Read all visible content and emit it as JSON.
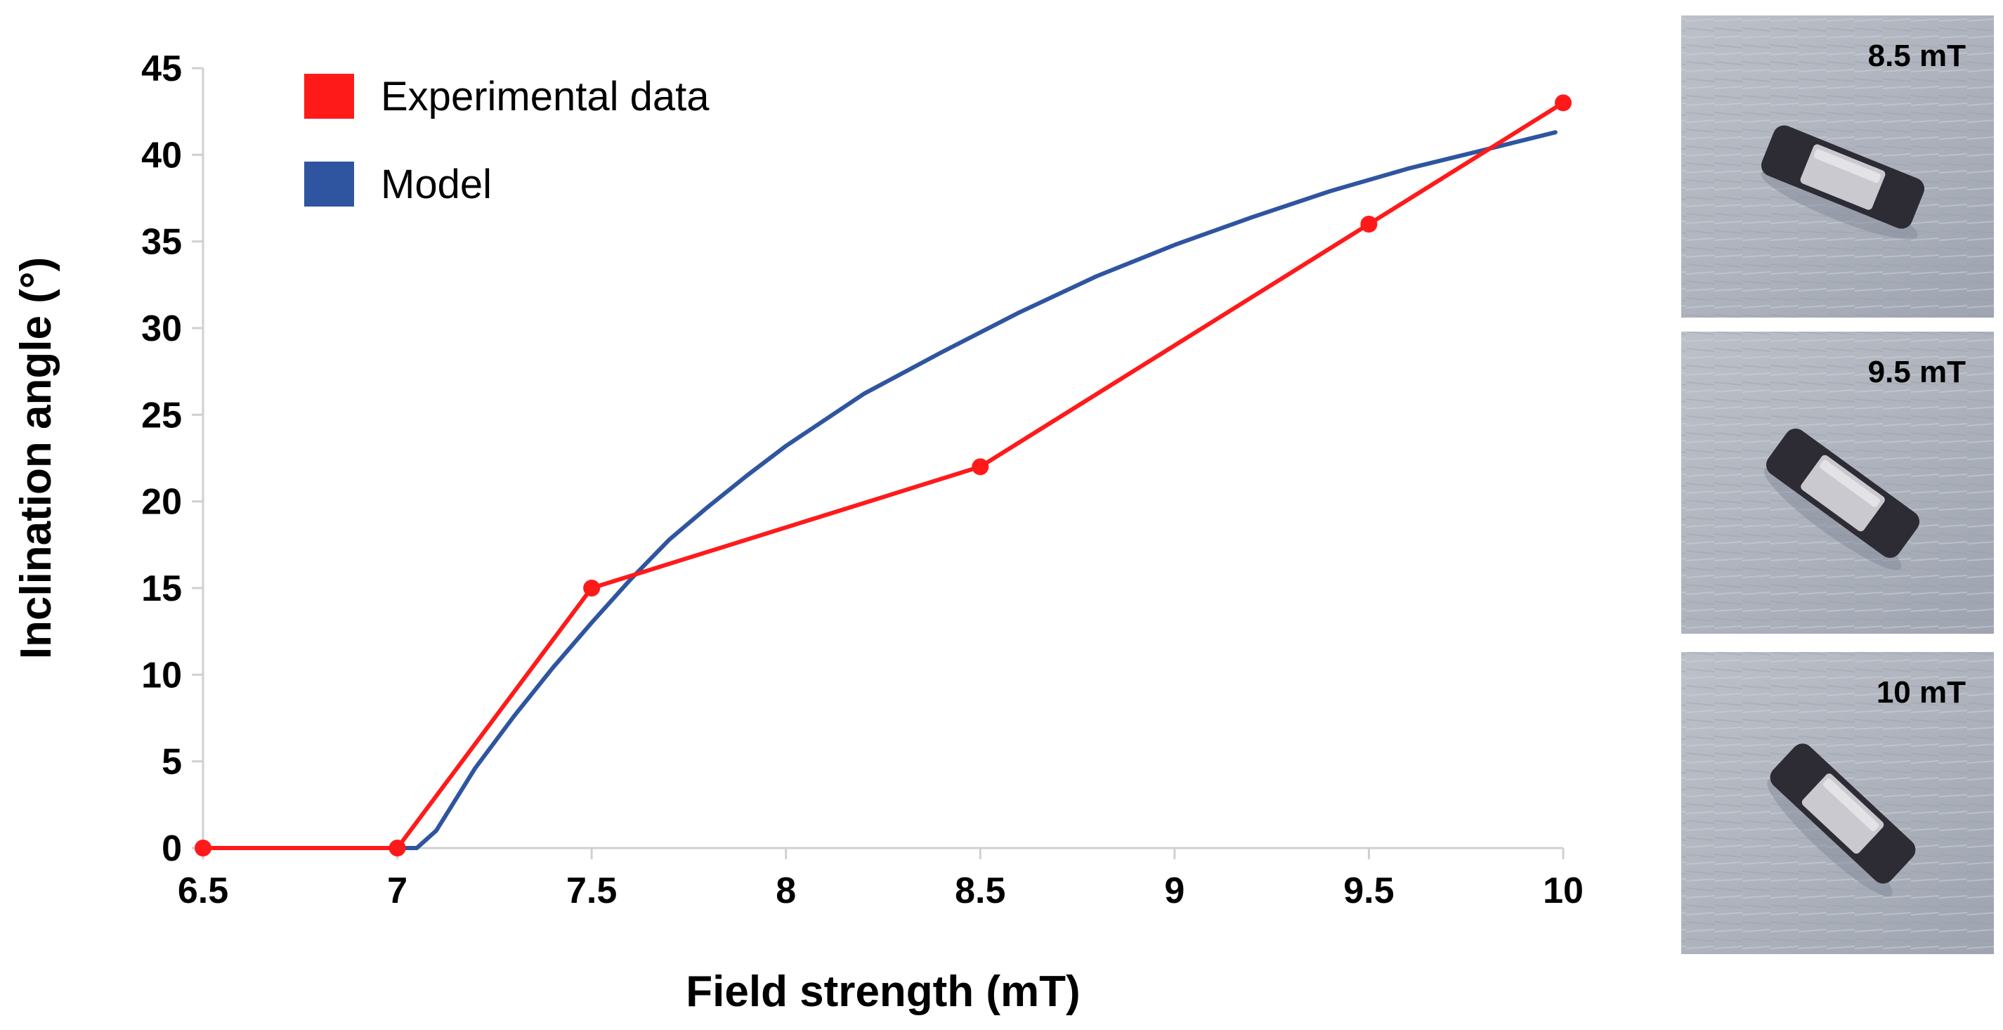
{
  "chart_data": {
    "type": "line",
    "title": "",
    "xlabel": "Field strength (mT)",
    "ylabel": "Inclination angle (°)",
    "xlim": [
      6.5,
      10
    ],
    "ylim": [
      0,
      45
    ],
    "x_ticks": [
      "6.5",
      "7",
      "7.5",
      "8",
      "8.5",
      "9",
      "9.5",
      "10"
    ],
    "y_ticks": [
      "0",
      "5",
      "10",
      "15",
      "20",
      "25",
      "30",
      "35",
      "40",
      "45"
    ],
    "grid": false,
    "legend_position": "top-left",
    "series": [
      {
        "name": "Experimental data",
        "color": "#ff1a1a",
        "markers": true,
        "x": [
          6.5,
          7.0,
          7.5,
          8.5,
          9.5,
          10.0
        ],
        "y": [
          0,
          0,
          15,
          22,
          36,
          43
        ]
      },
      {
        "name": "Model",
        "color": "#2f55a0",
        "markers": false,
        "x": [
          7.0,
          7.05,
          7.1,
          7.2,
          7.3,
          7.4,
          7.5,
          7.6,
          7.7,
          7.8,
          7.9,
          8.0,
          8.2,
          8.4,
          8.6,
          8.8,
          9.0,
          9.2,
          9.4,
          9.6,
          9.8,
          9.98
        ],
        "y": [
          0,
          0,
          1.0,
          4.6,
          7.6,
          10.4,
          13.0,
          15.5,
          17.8,
          19.7,
          21.5,
          23.2,
          26.2,
          28.6,
          30.9,
          33.0,
          34.8,
          36.4,
          37.9,
          39.2,
          40.3,
          41.3
        ]
      }
    ]
  },
  "photos": [
    {
      "label": "8.5 mT",
      "tilt": 22
    },
    {
      "label": "9.5 mT",
      "tilt": 36
    },
    {
      "label": "10 mT",
      "tilt": 43
    }
  ]
}
